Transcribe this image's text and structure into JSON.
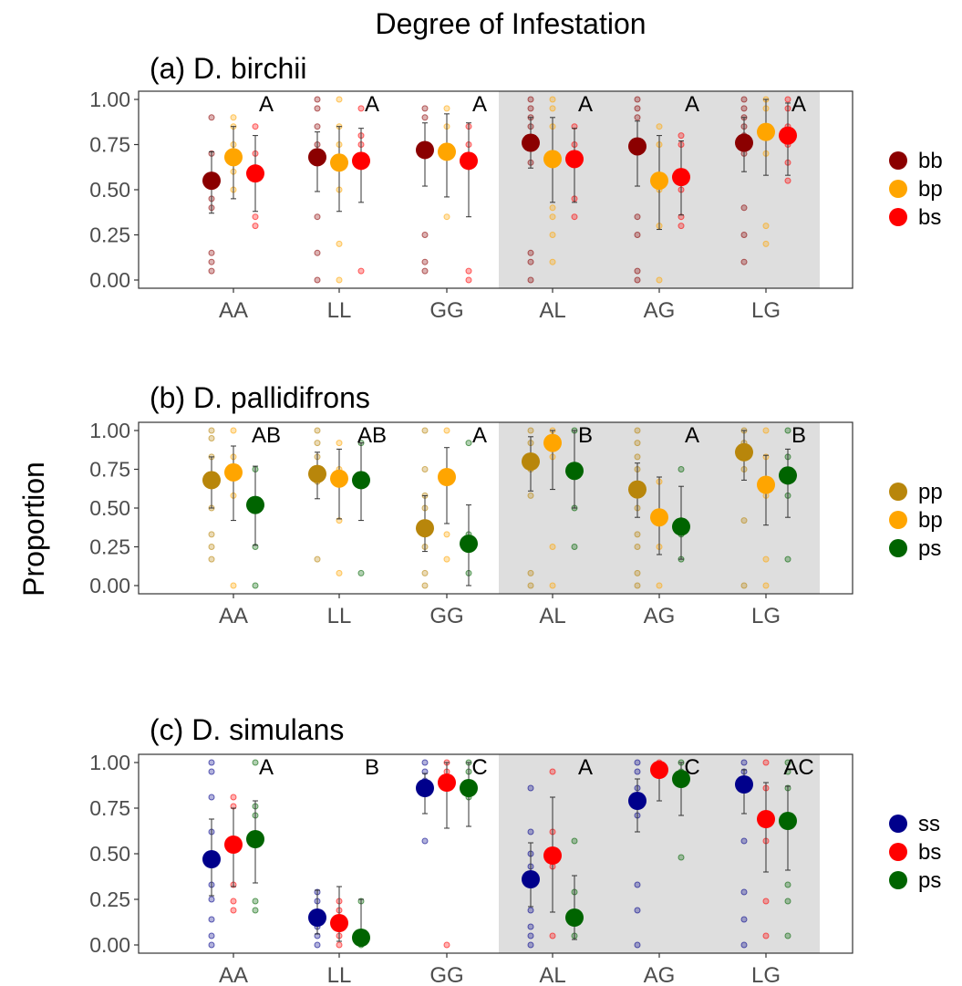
{
  "figure": {
    "title": "Degree of Infestation",
    "ylabel": "Proportion"
  },
  "chart_data": [
    {
      "type": "scatter",
      "title": "(a) D. birchii",
      "categories": [
        "AA",
        "LL",
        "GG",
        "AL",
        "AG",
        "LG"
      ],
      "shaded_categories": [
        "AL",
        "AG",
        "LG"
      ],
      "ylim": [
        0,
        1
      ],
      "yticks": [
        "0.00",
        "0.25",
        "0.50",
        "0.75",
        "1.00"
      ],
      "grid": false,
      "legend_position": "right",
      "letters": [
        "A",
        "A",
        "A",
        "A",
        "A",
        "A"
      ],
      "series": [
        {
          "name": "bb",
          "color": "#8B0000",
          "means": [
            0.55,
            0.68,
            0.72,
            0.76,
            0.74,
            0.76
          ],
          "err_low": [
            0.37,
            0.49,
            0.52,
            0.62,
            0.52,
            0.6
          ],
          "err_high": [
            0.71,
            0.82,
            0.87,
            0.9,
            0.88,
            0.9
          ],
          "raw": [
            [
              0.9,
              0.7,
              0.45,
              0.4,
              0.15,
              0.1,
              0.05
            ],
            [
              1.0,
              0.95,
              0.85,
              0.75,
              0.35,
              0.15,
              0.0
            ],
            [
              0.95,
              0.9,
              0.75,
              0.7,
              0.25,
              0.1,
              0.05
            ],
            [
              1.0,
              0.95,
              0.9,
              0.85,
              0.75,
              0.65,
              0.15,
              0.1,
              0.0
            ],
            [
              1.0,
              0.95,
              0.9,
              0.75,
              0.35,
              0.25,
              0.05,
              0.0
            ],
            [
              1.0,
              0.95,
              0.9,
              0.85,
              0.8,
              0.7,
              0.4,
              0.25,
              0.1
            ]
          ]
        },
        {
          "name": "bp",
          "color": "#FFA500",
          "means": [
            0.68,
            0.65,
            0.71,
            0.67,
            0.55,
            0.82
          ],
          "err_low": [
            0.45,
            0.38,
            0.46,
            0.43,
            0.28,
            0.58
          ],
          "err_high": [
            0.85,
            0.85,
            0.92,
            0.9,
            0.8,
            1.0
          ],
          "raw": [
            [
              0.9,
              0.85,
              0.75,
              0.6,
              0.5
            ],
            [
              1.0,
              0.85,
              0.75,
              0.5,
              0.2,
              0.0
            ],
            [
              0.95,
              0.85,
              0.7,
              0.35
            ],
            [
              1.0,
              0.95,
              0.85,
              0.7,
              0.4,
              0.35,
              0.25,
              0.1
            ],
            [
              0.85,
              0.75,
              0.5,
              0.3,
              0.0
            ],
            [
              1.0,
              0.95,
              0.85,
              0.7,
              0.3,
              0.2
            ]
          ]
        },
        {
          "name": "bs",
          "color": "#FF0000",
          "means": [
            0.59,
            0.66,
            0.66,
            0.67,
            0.57,
            0.8
          ],
          "err_low": [
            0.38,
            0.43,
            0.35,
            0.43,
            0.36,
            0.58
          ],
          "err_high": [
            0.8,
            0.84,
            0.87,
            0.84,
            0.77,
            0.98
          ],
          "raw": [
            [
              0.85,
              0.7,
              0.6,
              0.35,
              0.3
            ],
            [
              0.95,
              0.8,
              0.75,
              0.05
            ],
            [
              0.85,
              0.75,
              0.05,
              0.0
            ],
            [
              0.85,
              0.75,
              0.65,
              0.45,
              0.35
            ],
            [
              0.8,
              0.75,
              0.6,
              0.5,
              0.35,
              0.3
            ],
            [
              1.0,
              0.95,
              0.85,
              0.75,
              0.65,
              0.55
            ]
          ]
        }
      ]
    },
    {
      "type": "scatter",
      "title": "(b) D. pallidifrons",
      "categories": [
        "AA",
        "LL",
        "GG",
        "AL",
        "AG",
        "LG"
      ],
      "shaded_categories": [
        "AL",
        "AG",
        "LG"
      ],
      "ylim": [
        0,
        1
      ],
      "yticks": [
        "0.00",
        "0.25",
        "0.50",
        "0.75",
        "1.00"
      ],
      "grid": false,
      "legend_position": "right",
      "letters": [
        "AB",
        "AB",
        "A",
        "B",
        "A",
        "B"
      ],
      "series": [
        {
          "name": "pp",
          "color": "#B8860B",
          "means": [
            0.68,
            0.72,
            0.37,
            0.8,
            0.62,
            0.86
          ],
          "err_low": [
            0.5,
            0.56,
            0.22,
            0.61,
            0.44,
            0.68
          ],
          "err_high": [
            0.83,
            0.86,
            0.58,
            0.96,
            0.79,
            1.0
          ],
          "raw": [
            [
              1.0,
              0.95,
              0.83,
              0.67,
              0.5,
              0.33,
              0.25,
              0.17
            ],
            [
              1.0,
              0.92,
              0.83,
              0.75,
              0.67,
              0.17
            ],
            [
              1.0,
              0.75,
              0.58,
              0.5,
              0.33,
              0.25,
              0.08,
              0.0
            ],
            [
              1.0,
              0.92,
              0.83,
              0.75,
              0.58,
              0.08,
              0.0
            ],
            [
              1.0,
              0.92,
              0.83,
              0.75,
              0.5,
              0.33,
              0.25,
              0.08,
              0.0
            ],
            [
              1.0,
              0.92,
              0.83,
              0.75,
              0.42,
              0.0
            ]
          ]
        },
        {
          "name": "bp",
          "color": "#FFA500",
          "means": [
            0.73,
            0.69,
            0.7,
            0.92,
            0.44,
            0.65
          ],
          "err_low": [
            0.42,
            0.43,
            0.4,
            0.62,
            0.2,
            0.39
          ],
          "err_high": [
            0.9,
            0.88,
            0.89,
            1.0,
            0.7,
            0.84
          ],
          "raw": [
            [
              1.0,
              0.83,
              0.58,
              0.0
            ],
            [
              0.92,
              0.75,
              0.42,
              0.08
            ],
            [
              1.0,
              0.67,
              0.33,
              0.17
            ],
            [
              1.0,
              0.83,
              0.25,
              0.0
            ],
            [
              0.67,
              0.42,
              0.25,
              0.0
            ],
            [
              1.0,
              0.83,
              0.58,
              0.17,
              0.0
            ]
          ]
        },
        {
          "name": "ps",
          "color": "#006400",
          "means": [
            0.52,
            0.68,
            0.27,
            0.74,
            0.38,
            0.71
          ],
          "err_low": [
            0.26,
            0.42,
            0.0,
            0.5,
            0.17,
            0.44
          ],
          "err_high": [
            0.77,
            0.92,
            0.52,
            1.0,
            0.64,
            0.88
          ],
          "raw": [
            [
              0.75,
              0.5,
              0.25,
              0.0
            ],
            [
              0.92,
              0.67,
              0.08
            ],
            [
              0.92,
              0.33,
              0.08
            ],
            [
              1.0,
              0.75,
              0.5,
              0.25
            ],
            [
              0.75,
              0.42,
              0.33,
              0.17
            ],
            [
              1.0,
              0.83,
              0.67,
              0.58,
              0.17
            ]
          ]
        }
      ]
    },
    {
      "type": "scatter",
      "title": "(c) D. simulans",
      "categories": [
        "AA",
        "LL",
        "GG",
        "AL",
        "AG",
        "LG"
      ],
      "shaded_categories": [
        "AL",
        "AG",
        "LG"
      ],
      "ylim": [
        0,
        1
      ],
      "yticks": [
        "0.00",
        "0.25",
        "0.50",
        "0.75",
        "1.00"
      ],
      "grid": false,
      "legend_position": "right",
      "letters": [
        "A",
        "B",
        "C",
        "A",
        "C",
        "AC"
      ],
      "series": [
        {
          "name": "ss",
          "color": "#00008B",
          "means": [
            0.47,
            0.15,
            0.86,
            0.36,
            0.79,
            0.88
          ],
          "err_low": [
            0.27,
            0.06,
            0.72,
            0.21,
            0.62,
            0.72
          ],
          "err_high": [
            0.69,
            0.3,
            0.94,
            0.56,
            0.91,
            0.96
          ],
          "raw": [
            [
              1.0,
              0.95,
              0.81,
              0.62,
              0.45,
              0.33,
              0.25,
              0.14,
              0.05,
              0.0
            ],
            [
              0.29,
              0.24,
              0.14,
              0.1,
              0.05,
              0.0
            ],
            [
              1.0,
              0.95,
              0.9,
              0.86,
              0.57
            ],
            [
              0.86,
              0.62,
              0.5,
              0.43,
              0.33,
              0.19,
              0.1,
              0.05,
              0.0
            ],
            [
              1.0,
              0.95,
              0.86,
              0.71,
              0.33,
              0.19,
              0.0
            ],
            [
              1.0,
              0.95,
              0.9,
              0.57,
              0.29,
              0.14,
              0.0
            ]
          ]
        },
        {
          "name": "bs",
          "color": "#FF0000",
          "means": [
            0.55,
            0.12,
            0.89,
            0.49,
            0.96,
            0.69
          ],
          "err_low": [
            0.32,
            0.02,
            0.64,
            0.18,
            0.79,
            0.4
          ],
          "err_high": [
            0.75,
            0.32,
            1.0,
            0.81,
            1.0,
            0.89
          ],
          "raw": [
            [
              0.81,
              0.76,
              0.57,
              0.33,
              0.24,
              0.19
            ],
            [
              0.24,
              0.19,
              0.1,
              0.05,
              0.0
            ],
            [
              1.0,
              0.95,
              0.86,
              0.0
            ],
            [
              0.95,
              0.62,
              0.43,
              0.05
            ],
            [
              1.0,
              0.95
            ],
            [
              1.0,
              0.86,
              0.57,
              0.24,
              0.05
            ]
          ]
        },
        {
          "name": "ps",
          "color": "#006400",
          "means": [
            0.58,
            0.04,
            0.86,
            0.15,
            0.91,
            0.68
          ],
          "err_low": [
            0.34,
            0.0,
            0.65,
            0.03,
            0.71,
            0.41
          ],
          "err_high": [
            0.79,
            0.25,
            1.0,
            0.38,
            1.0,
            0.87
          ],
          "raw": [
            [
              1.0,
              0.76,
              0.71,
              0.57,
              0.24,
              0.19
            ],
            [
              0.24,
              0.05,
              0.0
            ],
            [
              1.0,
              0.95,
              0.86,
              0.81
            ],
            [
              0.57,
              0.29,
              0.14,
              0.05
            ],
            [
              1.0,
              0.95,
              0.48
            ],
            [
              1.0,
              0.95,
              0.86,
              0.33,
              0.24,
              0.05
            ]
          ]
        }
      ]
    }
  ]
}
